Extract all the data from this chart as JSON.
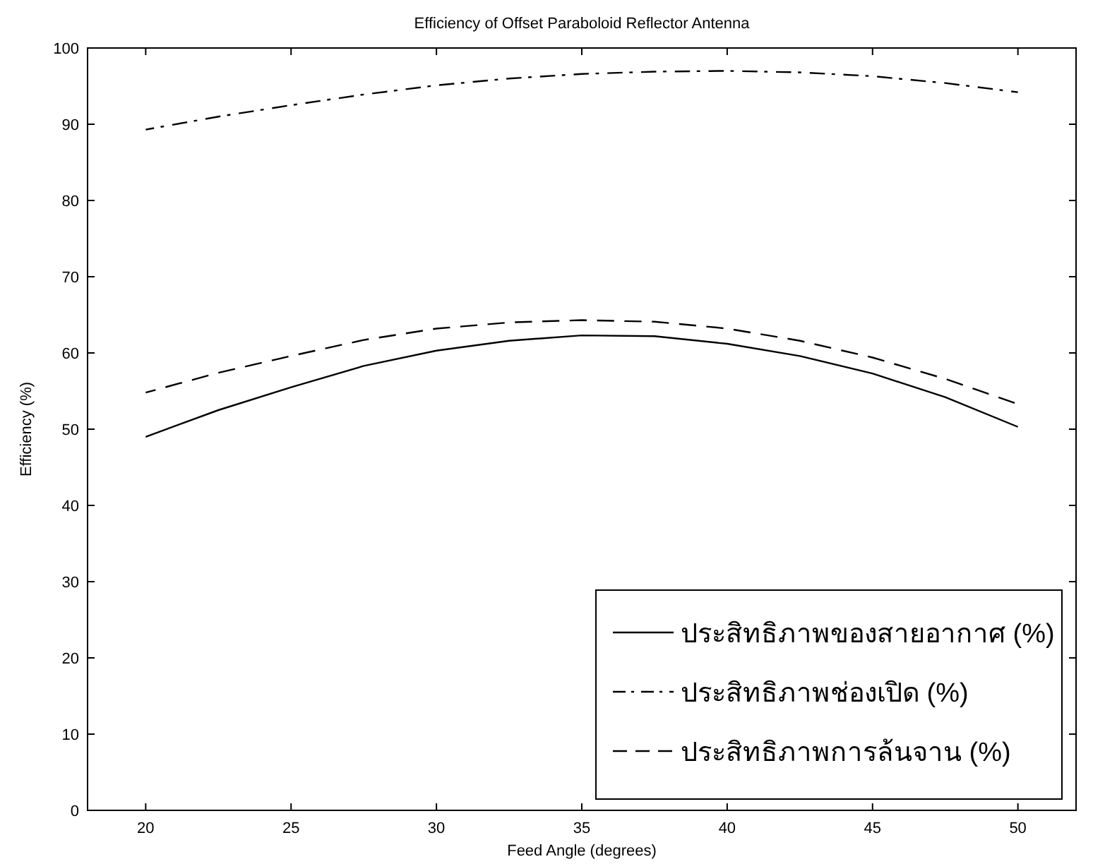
{
  "chart_data": {
    "type": "line",
    "title": "Efficiency of Offset Paraboloid Reflector Antenna",
    "xlabel": "Feed Angle (degrees)",
    "ylabel": "Efficiency (%)",
    "x": [
      20,
      22.5,
      25,
      27.5,
      30,
      32.5,
      35,
      37.5,
      40,
      42.5,
      45,
      47.5,
      50
    ],
    "xlim": [
      18,
      52
    ],
    "xticks": [
      20,
      25,
      30,
      35,
      40,
      45,
      50
    ],
    "ylim": [
      0,
      100
    ],
    "yticks": [
      0,
      10,
      20,
      30,
      40,
      50,
      60,
      70,
      80,
      90,
      100
    ],
    "grid": false,
    "legend": "bottom right",
    "marker": "none",
    "series": [
      {
        "name": "ประสิทธิภาพของสายอากาศ (%)",
        "color": "#000000",
        "line_style": "solid",
        "values": [
          49,
          52.5,
          55.5,
          58.3,
          60.3,
          61.6,
          62.3,
          62.2,
          61.2,
          59.6,
          57.3,
          54.2,
          50.3
        ]
      },
      {
        "name": "ประสิทธิภาพช่องเปิด (%)",
        "color": "#000000",
        "line_style": "dashdot",
        "values": [
          89.3,
          91,
          92.5,
          93.9,
          95.1,
          96,
          96.6,
          96.9,
          97,
          96.8,
          96.3,
          95.4,
          94.2
        ]
      },
      {
        "name": "ประสิทธิภาพการล้นจาน (%)",
        "color": "#000000",
        "line_style": "dashed",
        "values": [
          54.8,
          57.4,
          59.6,
          61.7,
          63.2,
          64,
          64.3,
          64.1,
          63.2,
          61.6,
          59.4,
          56.6,
          53.3
        ]
      }
    ]
  }
}
